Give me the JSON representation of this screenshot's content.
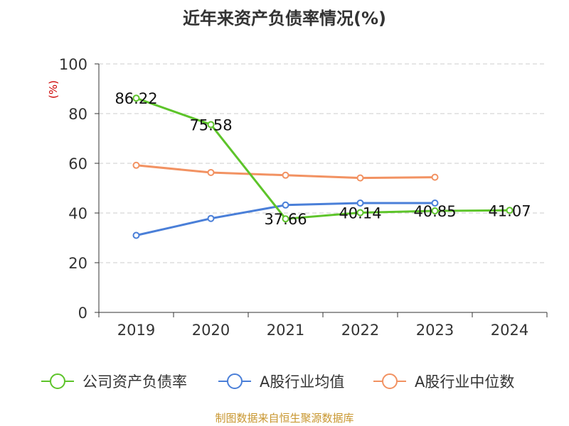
{
  "chart_data": {
    "type": "line",
    "title": "近年来资产负债率情况(%)",
    "ylabel": "(%)",
    "xlabel": "",
    "categories": [
      "2019",
      "2020",
      "2021",
      "2022",
      "2023",
      "2024"
    ],
    "ylim": [
      0,
      100
    ],
    "yticks": [
      0,
      20,
      40,
      60,
      80,
      100
    ],
    "grid": "horizontal-dashed",
    "legend_position": "bottom",
    "series": [
      {
        "name": "公司资产负债率",
        "color": "#5dc42a",
        "values": [
          86.22,
          75.58,
          37.66,
          40.14,
          40.85,
          41.07
        ],
        "labels": [
          "86.22",
          "75.58",
          "37.66",
          "40.14",
          "40.85",
          "41.07"
        ]
      },
      {
        "name": "A股行业均值",
        "color": "#4a7fd8",
        "values": [
          31.0,
          37.8,
          43.2,
          44.0,
          44.0,
          null
        ]
      },
      {
        "name": "A股行业中位数",
        "color": "#f29262",
        "values": [
          59.2,
          56.3,
          55.2,
          54.1,
          54.4,
          null
        ]
      }
    ]
  },
  "source": "制图数据来自恒生聚源数据库"
}
